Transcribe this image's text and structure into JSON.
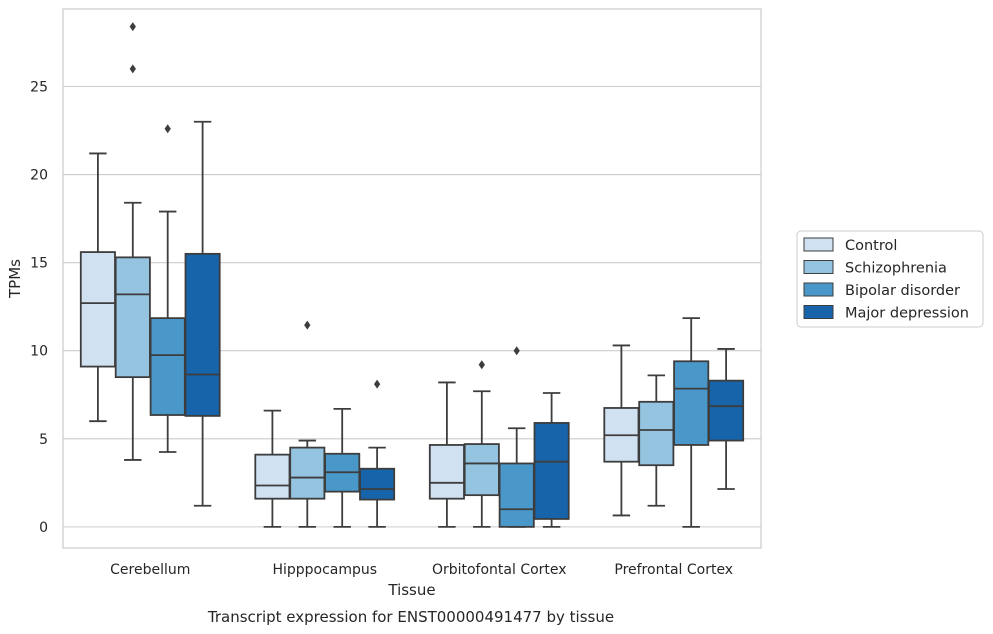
{
  "chart_data": {
    "type": "box",
    "xlabel": "Tissue",
    "ylabel": "TPMs",
    "caption": "Transcript expression for ENST00000491477 by tissue",
    "categories": [
      "Cerebellum",
      "Hipppocampus",
      "Orbitofontal Cortex",
      "Prefrontal Cortex"
    ],
    "ylim": [
      -1.2,
      29.4
    ],
    "yticks": [
      0,
      5,
      10,
      15,
      20,
      25
    ],
    "grid": "horizontal",
    "legend_position": "right",
    "series": [
      {
        "name": "Control",
        "color": "#d0e1f2",
        "boxes": [
          {
            "min": 6.0,
            "q1": 9.1,
            "median": 12.7,
            "q3": 15.6,
            "max": 21.2,
            "outliers": []
          },
          {
            "min": 0.0,
            "q1": 1.6,
            "median": 2.35,
            "q3": 4.1,
            "max": 6.6,
            "outliers": []
          },
          {
            "min": 0.0,
            "q1": 1.6,
            "median": 2.5,
            "q3": 4.65,
            "max": 8.2,
            "outliers": []
          },
          {
            "min": 0.65,
            "q1": 3.7,
            "median": 5.2,
            "q3": 6.75,
            "max": 10.3,
            "outliers": []
          }
        ]
      },
      {
        "name": "Schizophrenia",
        "color": "#94c4df",
        "boxes": [
          {
            "min": 3.8,
            "q1": 8.5,
            "median": 13.2,
            "q3": 15.3,
            "max": 18.4,
            "outliers": [
              26.0,
              28.4
            ]
          },
          {
            "min": 0.0,
            "q1": 1.6,
            "median": 2.8,
            "q3": 4.5,
            "max": 4.9,
            "outliers": [
              11.45
            ]
          },
          {
            "min": 0.0,
            "q1": 1.8,
            "median": 3.6,
            "q3": 4.7,
            "max": 7.7,
            "outliers": [
              9.2
            ]
          },
          {
            "min": 1.2,
            "q1": 3.5,
            "median": 5.5,
            "q3": 7.1,
            "max": 8.6,
            "outliers": []
          }
        ]
      },
      {
        "name": "Bipolar disorder",
        "color": "#4a98c9",
        "boxes": [
          {
            "min": 4.25,
            "q1": 6.35,
            "median": 9.75,
            "q3": 11.85,
            "max": 17.9,
            "outliers": [
              22.6
            ]
          },
          {
            "min": 0.0,
            "q1": 2.0,
            "median": 3.1,
            "q3": 4.15,
            "max": 6.7,
            "outliers": []
          },
          {
            "min": 0.0,
            "q1": 0.0,
            "median": 1.0,
            "q3": 3.6,
            "max": 5.6,
            "outliers": [
              10.0
            ]
          },
          {
            "min": 0.0,
            "q1": 4.65,
            "median": 7.85,
            "q3": 9.4,
            "max": 11.85,
            "outliers": []
          }
        ]
      },
      {
        "name": "Major depression",
        "color": "#1764ab",
        "boxes": [
          {
            "min": 1.2,
            "q1": 6.3,
            "median": 8.65,
            "q3": 15.5,
            "max": 23.0,
            "outliers": []
          },
          {
            "min": 0.0,
            "q1": 1.55,
            "median": 2.15,
            "q3": 3.3,
            "max": 4.5,
            "outliers": [
              8.1
            ]
          },
          {
            "min": 0.0,
            "q1": 0.45,
            "median": 3.7,
            "q3": 5.9,
            "max": 7.6,
            "outliers": []
          },
          {
            "min": 2.15,
            "q1": 4.9,
            "median": 6.85,
            "q3": 8.3,
            "max": 10.1,
            "outliers": []
          }
        ]
      }
    ]
  }
}
